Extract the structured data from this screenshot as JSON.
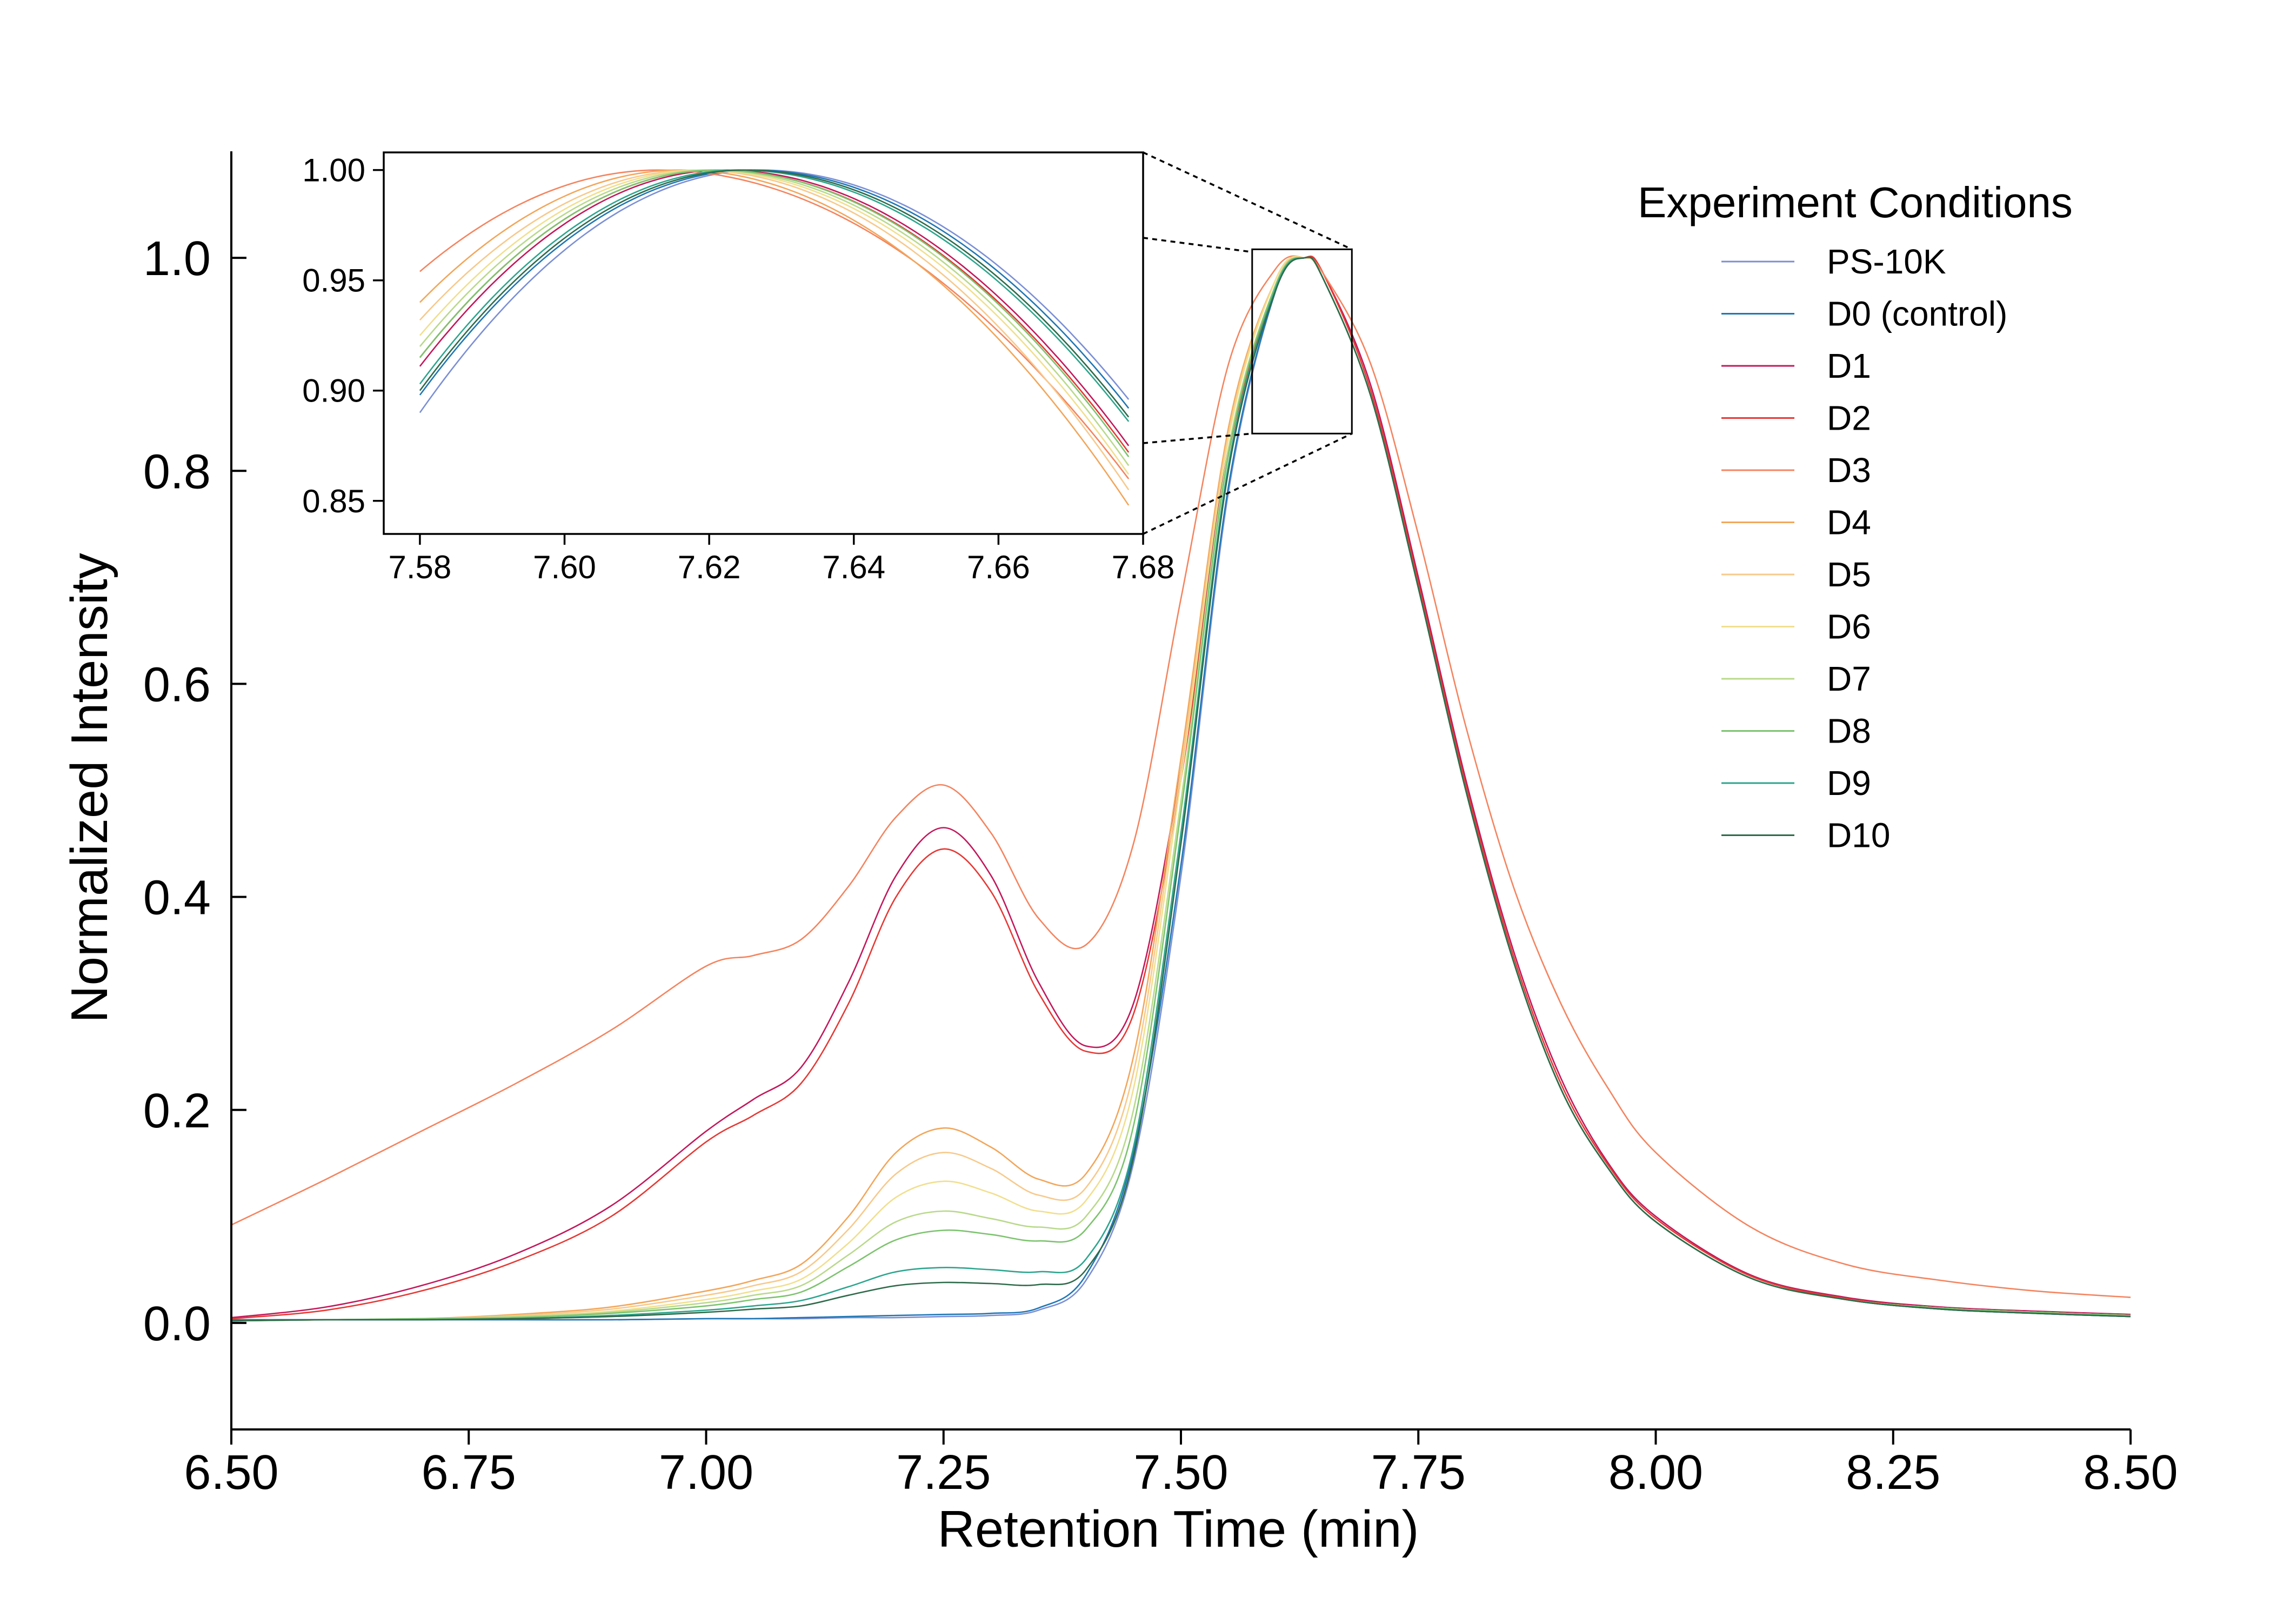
{
  "chart_data": {
    "type": "line",
    "xlabel": "Retention Time (min)",
    "ylabel": "Normalized Intensity",
    "xlim": [
      6.5,
      8.5
    ],
    "ylim": [
      -0.1,
      1.1
    ],
    "xticks": [
      "6.50",
      "6.75",
      "7.00",
      "7.25",
      "7.50",
      "7.75",
      "8.00",
      "8.25",
      "8.50"
    ],
    "yticks": [
      "0.0",
      "0.2",
      "0.4",
      "0.6",
      "0.8",
      "1.0"
    ],
    "grid": false,
    "legend": {
      "title": "Experiment Conditions",
      "placement": "top-right"
    },
    "x": [
      6.5,
      6.6,
      6.7,
      6.8,
      6.9,
      7.0,
      7.05,
      7.1,
      7.15,
      7.2,
      7.25,
      7.3,
      7.35,
      7.4,
      7.45,
      7.5,
      7.55,
      7.6,
      7.63,
      7.65,
      7.7,
      7.75,
      7.8,
      7.85,
      7.9,
      7.95,
      8.0,
      8.1,
      8.2,
      8.3,
      8.4,
      8.5
    ],
    "series": [
      {
        "name": "PS-10K",
        "color": "#7b8fd6",
        "values": [
          0.003,
          0.003,
          0.003,
          0.003,
          0.003,
          0.004,
          0.004,
          0.004,
          0.005,
          0.005,
          0.006,
          0.007,
          0.012,
          0.04,
          0.15,
          0.42,
          0.78,
          0.97,
          1.0,
          0.98,
          0.87,
          0.69,
          0.5,
          0.34,
          0.22,
          0.145,
          0.095,
          0.042,
          0.022,
          0.013,
          0.009,
          0.006
        ]
      },
      {
        "name": "D0 (control)",
        "color": "#1f77b4",
        "values": [
          0.003,
          0.003,
          0.003,
          0.003,
          0.003,
          0.004,
          0.004,
          0.005,
          0.006,
          0.007,
          0.008,
          0.009,
          0.014,
          0.045,
          0.16,
          0.43,
          0.785,
          0.97,
          1.0,
          0.98,
          0.87,
          0.69,
          0.5,
          0.34,
          0.22,
          0.145,
          0.095,
          0.042,
          0.022,
          0.013,
          0.009,
          0.006
        ]
      },
      {
        "name": "D1",
        "color": "#c2185b",
        "values": [
          0.005,
          0.015,
          0.035,
          0.065,
          0.11,
          0.18,
          0.21,
          0.24,
          0.32,
          0.42,
          0.465,
          0.42,
          0.32,
          0.26,
          0.3,
          0.52,
          0.82,
          0.975,
          1.0,
          0.985,
          0.88,
          0.7,
          0.51,
          0.35,
          0.23,
          0.15,
          0.1,
          0.045,
          0.024,
          0.015,
          0.011,
          0.008
        ]
      },
      {
        "name": "D2",
        "color": "#e53935",
        "values": [
          0.004,
          0.012,
          0.03,
          0.058,
          0.1,
          0.17,
          0.195,
          0.225,
          0.3,
          0.4,
          0.445,
          0.405,
          0.31,
          0.255,
          0.29,
          0.51,
          0.815,
          0.975,
          1.0,
          0.985,
          0.875,
          0.695,
          0.505,
          0.345,
          0.225,
          0.148,
          0.098,
          0.044,
          0.023,
          0.014,
          0.01,
          0.007
        ]
      },
      {
        "name": "D3",
        "color": "#f4845f",
        "values": [
          0.092,
          0.135,
          0.18,
          0.225,
          0.275,
          0.335,
          0.345,
          0.36,
          0.41,
          0.475,
          0.505,
          0.46,
          0.38,
          0.355,
          0.45,
          0.68,
          0.9,
          0.99,
          1.0,
          0.985,
          0.9,
          0.74,
          0.56,
          0.41,
          0.3,
          0.22,
          0.16,
          0.09,
          0.055,
          0.04,
          0.03,
          0.024
        ]
      },
      {
        "name": "D4",
        "color": "#f2a65a",
        "values": [
          0.002,
          0.003,
          0.004,
          0.008,
          0.015,
          0.03,
          0.04,
          0.055,
          0.1,
          0.16,
          0.183,
          0.165,
          0.135,
          0.14,
          0.25,
          0.53,
          0.84,
          0.98,
          1.0,
          0.98,
          0.87,
          0.69,
          0.5,
          0.34,
          0.22,
          0.145,
          0.095,
          0.042,
          0.022,
          0.014,
          0.01,
          0.007
        ]
      },
      {
        "name": "D5",
        "color": "#f7c98b",
        "values": [
          0.002,
          0.003,
          0.004,
          0.007,
          0.013,
          0.026,
          0.035,
          0.048,
          0.088,
          0.14,
          0.16,
          0.145,
          0.12,
          0.127,
          0.235,
          0.52,
          0.835,
          0.98,
          1.0,
          0.98,
          0.87,
          0.69,
          0.5,
          0.34,
          0.22,
          0.145,
          0.095,
          0.042,
          0.022,
          0.014,
          0.01,
          0.007
        ]
      },
      {
        "name": "D6",
        "color": "#f1df8e",
        "values": [
          0.002,
          0.003,
          0.004,
          0.006,
          0.011,
          0.022,
          0.03,
          0.041,
          0.075,
          0.118,
          0.133,
          0.122,
          0.105,
          0.115,
          0.22,
          0.51,
          0.83,
          0.98,
          1.0,
          0.98,
          0.87,
          0.69,
          0.5,
          0.34,
          0.22,
          0.145,
          0.095,
          0.042,
          0.022,
          0.014,
          0.01,
          0.007
        ]
      },
      {
        "name": "D7",
        "color": "#b8d98a",
        "values": [
          0.002,
          0.003,
          0.004,
          0.006,
          0.01,
          0.019,
          0.026,
          0.035,
          0.064,
          0.095,
          0.105,
          0.098,
          0.09,
          0.1,
          0.2,
          0.49,
          0.82,
          0.975,
          1.0,
          0.98,
          0.87,
          0.69,
          0.5,
          0.34,
          0.22,
          0.145,
          0.095,
          0.042,
          0.022,
          0.014,
          0.01,
          0.007
        ]
      },
      {
        "name": "D8",
        "color": "#7cc36e",
        "values": [
          0.002,
          0.003,
          0.004,
          0.005,
          0.009,
          0.016,
          0.022,
          0.029,
          0.053,
          0.078,
          0.087,
          0.083,
          0.077,
          0.088,
          0.185,
          0.48,
          0.815,
          0.975,
          1.0,
          0.98,
          0.87,
          0.69,
          0.5,
          0.34,
          0.22,
          0.145,
          0.095,
          0.042,
          0.022,
          0.014,
          0.01,
          0.007
        ]
      },
      {
        "name": "D9",
        "color": "#2ca58d",
        "values": [
          0.002,
          0.003,
          0.003,
          0.004,
          0.007,
          0.012,
          0.016,
          0.021,
          0.034,
          0.048,
          0.052,
          0.05,
          0.048,
          0.06,
          0.165,
          0.46,
          0.805,
          0.972,
          1.0,
          0.98,
          0.87,
          0.69,
          0.5,
          0.34,
          0.22,
          0.145,
          0.095,
          0.042,
          0.022,
          0.013,
          0.009,
          0.006
        ]
      },
      {
        "name": "D10",
        "color": "#2e6b4a",
        "values": [
          0.002,
          0.003,
          0.003,
          0.004,
          0.006,
          0.01,
          0.013,
          0.016,
          0.026,
          0.035,
          0.038,
          0.037,
          0.036,
          0.05,
          0.155,
          0.45,
          0.8,
          0.97,
          1.0,
          0.98,
          0.87,
          0.69,
          0.5,
          0.34,
          0.22,
          0.145,
          0.095,
          0.042,
          0.022,
          0.013,
          0.009,
          0.006
        ]
      }
    ],
    "inset": {
      "xlim": [
        7.575,
        7.68
      ],
      "ylim": [
        0.835,
        1.008
      ],
      "xticks": [
        "7.58",
        "7.60",
        "7.62",
        "7.64",
        "7.66",
        "7.68"
      ],
      "yticks": [
        "0.85",
        "0.90",
        "0.95",
        "1.00"
      ],
      "x_range": [
        7.58,
        7.678
      ],
      "series": [
        {
          "name": "PS-10K",
          "peak": 7.627,
          "start": 0.89,
          "end": 0.896
        },
        {
          "name": "D0 (control)",
          "peak": 7.626,
          "start": 0.898,
          "end": 0.892
        },
        {
          "name": "D1",
          "peak": 7.622,
          "start": 0.911,
          "end": 0.875
        },
        {
          "name": "D2",
          "peak": 7.621,
          "start": 0.915,
          "end": 0.872
        },
        {
          "name": "D3",
          "peak": 7.613,
          "start": 0.954,
          "end": 0.86
        },
        {
          "name": "D4",
          "peak": 7.616,
          "start": 0.94,
          "end": 0.848
        },
        {
          "name": "D5",
          "peak": 7.618,
          "start": 0.932,
          "end": 0.855
        },
        {
          "name": "D6",
          "peak": 7.619,
          "start": 0.925,
          "end": 0.862
        },
        {
          "name": "D7",
          "peak": 7.62,
          "start": 0.92,
          "end": 0.866
        },
        {
          "name": "D8",
          "peak": 7.621,
          "start": 0.915,
          "end": 0.87
        },
        {
          "name": "D9",
          "peak": 7.624,
          "start": 0.903,
          "end": 0.886
        },
        {
          "name": "D10",
          "peak": 7.625,
          "start": 0.9,
          "end": 0.888
        }
      ]
    }
  }
}
